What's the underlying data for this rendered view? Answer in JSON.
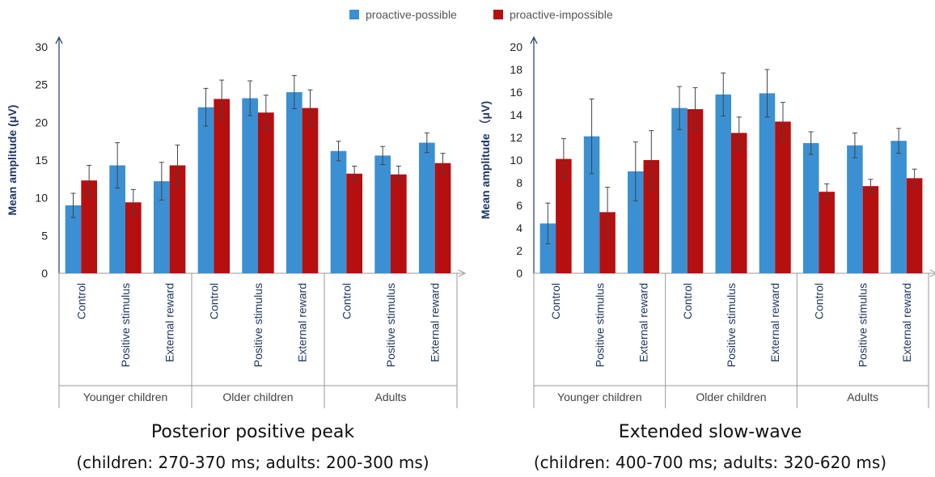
{
  "legend": {
    "items": [
      {
        "label": "proactive-possible",
        "color": "#3b8fd3"
      },
      {
        "label": "proactive-impossible",
        "color": "#b50f0f"
      }
    ]
  },
  "captions": [
    {
      "title": "Posterior positive peak",
      "subtitle": "(children: 270-370 ms; adults: 200-300 ms)"
    },
    {
      "title": "Extended slow-wave",
      "subtitle": "(children: 400-700 ms; adults: 320-620 ms)"
    }
  ],
  "chart_data": [
    {
      "type": "bar",
      "ylabel": "Mean amplitude (μV)",
      "ylim": [
        0,
        30
      ],
      "yticks": [
        "0",
        "5",
        "10",
        "15",
        "20",
        "25",
        "30"
      ],
      "groups": [
        "Younger children",
        "Older children",
        "Adults"
      ],
      "categories": [
        "Control",
        "Positive stimulus",
        "External reward",
        "Control",
        "Positive stimulus",
        "External reward",
        "Control",
        "Positive stimulus",
        "External reward"
      ],
      "series": [
        {
          "name": "proactive-possible",
          "values": [
            9.0,
            14.3,
            12.2,
            22.0,
            23.2,
            24.0,
            16.2,
            15.6,
            17.3
          ],
          "errors": [
            1.6,
            3.0,
            2.5,
            2.5,
            2.3,
            2.2,
            1.3,
            1.2,
            1.3
          ]
        },
        {
          "name": "proactive-impossible",
          "values": [
            12.3,
            9.4,
            14.3,
            23.1,
            21.3,
            21.9,
            13.2,
            13.1,
            14.6
          ],
          "errors": [
            2.0,
            1.7,
            2.7,
            2.5,
            2.3,
            2.4,
            1.0,
            1.1,
            1.3
          ]
        }
      ]
    },
    {
      "type": "bar",
      "ylabel": "Mean amplitude （μV)",
      "ylim": [
        0,
        20
      ],
      "yticks": [
        "0",
        "2",
        "4",
        "6",
        "8",
        "10",
        "12",
        "14",
        "16",
        "18",
        "20"
      ],
      "groups": [
        "Younger children",
        "Older children",
        "Adults"
      ],
      "categories": [
        "Control",
        "Positive stimulus",
        "External reward",
        "Control",
        "Positive stimulus",
        "External reward",
        "Control",
        "Positive stimulus",
        "External reward"
      ],
      "series": [
        {
          "name": "proactive-possible",
          "values": [
            4.4,
            12.1,
            9.0,
            14.6,
            15.8,
            15.9,
            11.5,
            11.3,
            11.7
          ],
          "errors": [
            1.8,
            3.3,
            2.6,
            1.9,
            1.9,
            2.1,
            1.0,
            1.1,
            1.1
          ]
        },
        {
          "name": "proactive-impossible",
          "values": [
            10.1,
            5.4,
            10.0,
            14.5,
            12.4,
            13.4,
            7.2,
            7.7,
            8.4
          ],
          "errors": [
            1.8,
            2.2,
            2.6,
            1.9,
            1.4,
            1.7,
            0.7,
            0.6,
            0.8
          ]
        }
      ]
    }
  ]
}
